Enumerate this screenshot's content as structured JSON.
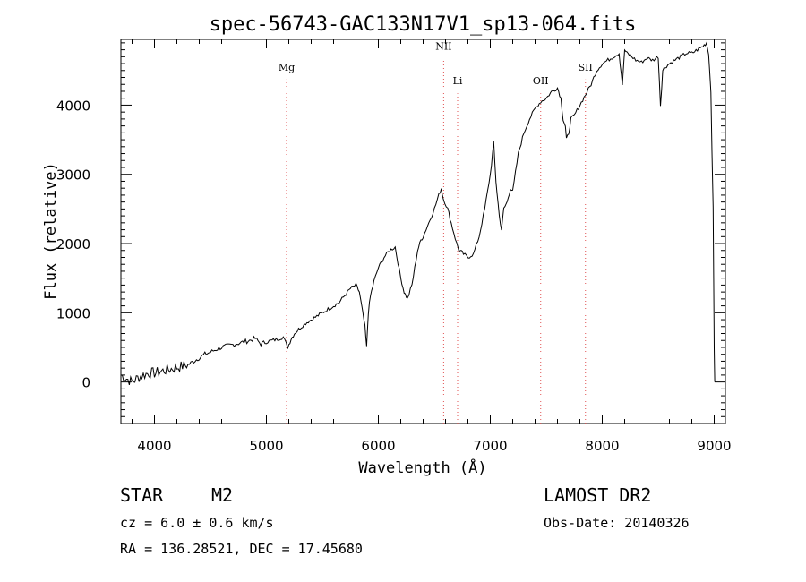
{
  "chart_data": {
    "type": "line",
    "title": "spec-56743-GAC133N17V1_sp13-064.fits",
    "xlabel": "Wavelength (Å)",
    "ylabel": "Flux (relative)",
    "xlim": [
      3700,
      9100
    ],
    "ylim": [
      -600,
      4950
    ],
    "x_ticks": [
      4000,
      5000,
      6000,
      7000,
      8000,
      9000
    ],
    "x_tick_labels": [
      "4000",
      "5000",
      "6000",
      "7000",
      "8000",
      "9000"
    ],
    "y_ticks": [
      0,
      1000,
      2000,
      3000,
      4000
    ],
    "y_tick_labels": [
      "0",
      "1000",
      "2000",
      "3000",
      "4000"
    ],
    "grid": false,
    "legend": "none",
    "line_color": "#000000",
    "marker_color": "#e05050",
    "series": [
      {
        "x": [
          3700,
          3750,
          3800,
          3850,
          3900,
          3950,
          4000,
          4050,
          4100,
          4150,
          4200,
          4250,
          4300,
          4350,
          4400,
          4450,
          4500,
          4550,
          4600,
          4650,
          4700,
          4750,
          4800,
          4850,
          4900,
          4950,
          5000,
          5050,
          5100,
          5150,
          5190,
          5220,
          5250,
          5300,
          5350,
          5400,
          5450,
          5500,
          5550,
          5600,
          5650,
          5700,
          5750,
          5800,
          5830,
          5860,
          5880,
          5895,
          5910,
          5930,
          5960,
          6000,
          6050,
          6100,
          6150,
          6200,
          6230,
          6260,
          6300,
          6350,
          6380,
          6400,
          6450,
          6500,
          6540,
          6562,
          6580,
          6620,
          6650,
          6700,
          6720,
          6740,
          6760,
          6800,
          6850,
          6900,
          6950,
          7000,
          7030,
          7050,
          7080,
          7100,
          7120,
          7150,
          7180,
          7200,
          7250,
          7300,
          7350,
          7400,
          7450,
          7500,
          7550,
          7600,
          7630,
          7650,
          7670,
          7680,
          7700,
          7720,
          7750,
          7800,
          7850,
          7900,
          7950,
          8000,
          8050,
          8100,
          8150,
          8180,
          8200,
          8220,
          8250,
          8300,
          8350,
          8400,
          8450,
          8500,
          8520,
          8540,
          8560,
          8600,
          8650,
          8700,
          8750,
          8800,
          8850,
          8900,
          8930,
          8950,
          8970,
          8990,
          9000,
          9005
        ],
        "y": [
          100,
          50,
          0,
          60,
          100,
          130,
          130,
          150,
          170,
          190,
          210,
          230,
          250,
          300,
          350,
          400,
          430,
          470,
          500,
          520,
          540,
          560,
          580,
          600,
          630,
          550,
          580,
          600,
          620,
          650,
          500,
          620,
          700,
          780,
          850,
          900,
          950,
          1000,
          1050,
          1100,
          1150,
          1250,
          1350,
          1400,
          1300,
          1000,
          800,
          500,
          1000,
          1250,
          1450,
          1650,
          1800,
          1900,
          1950,
          1500,
          1300,
          1200,
          1400,
          1900,
          2050,
          2100,
          2300,
          2500,
          2700,
          2800,
          2650,
          2500,
          2300,
          2000,
          1900,
          1880,
          1850,
          1800,
          1850,
          2100,
          2500,
          3000,
          3450,
          2900,
          2400,
          2200,
          2500,
          2600,
          2800,
          2750,
          3300,
          3600,
          3800,
          3950,
          4050,
          4100,
          4200,
          4250,
          4100,
          3800,
          3700,
          3500,
          3600,
          3800,
          3850,
          4000,
          4150,
          4300,
          4500,
          4600,
          4650,
          4700,
          4750,
          4300,
          4800,
          4750,
          4720,
          4650,
          4620,
          4680,
          4650,
          4700,
          4000,
          4500,
          4550,
          4600,
          4650,
          4700,
          4750,
          4750,
          4800,
          4850,
          4900,
          4750,
          4200,
          2500,
          500,
          0
        ]
      }
    ],
    "line_markers": [
      {
        "label": "Mg",
        "x": 5180,
        "label_y": 4500
      },
      {
        "label": "NII",
        "x": 6583,
        "label_y": 4800
      },
      {
        "label": "Li",
        "x": 6708,
        "label_y": 4300
      },
      {
        "label": "OII",
        "x": 7450,
        "label_y": 4300
      },
      {
        "label": "SII",
        "x": 7850,
        "label_y": 4500
      }
    ]
  },
  "footer": {
    "object_type": "STAR",
    "subclass": "M2",
    "survey": "LAMOST DR2",
    "cz": "cz = 6.0 ± 0.6 km/s",
    "obs_date": "Obs-Date: 20140326",
    "coords": "RA = 136.28521, DEC =  17.45680"
  }
}
